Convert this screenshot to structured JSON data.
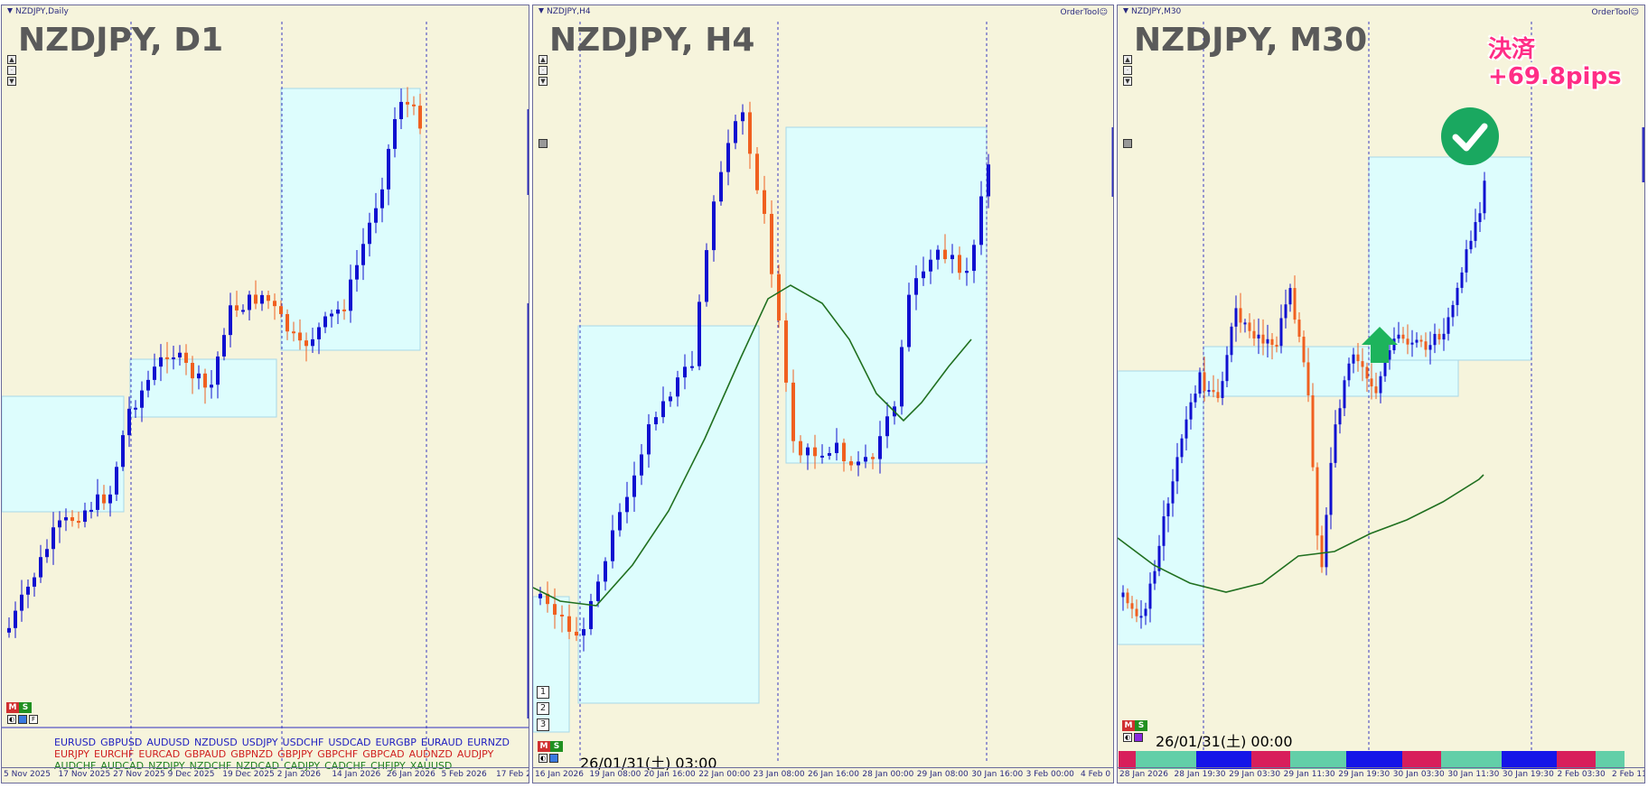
{
  "panels": [
    {
      "title": "NZDJPY,Daily",
      "big_label": "NZDJPY, D1",
      "ordertool": "",
      "xaxis": [
        "5 Nov 2025",
        "17 Nov 2025",
        "27 Nov 2025",
        "9 Dec 2025",
        "19 Dec 2025",
        "2 Jan 2026",
        "14 Jan 2026",
        "26 Jan 2026",
        "5 Feb 2026",
        "17 Feb 2"
      ],
      "ms_buttons": [
        "M",
        "S",
        "F"
      ]
    },
    {
      "title": "NZDJPY,H4",
      "big_label": "NZDJPY, H4",
      "ordertool": "OrderTool☺",
      "xaxis": [
        "16 Jan 2026",
        "19 Jan 08:00",
        "20 Jan 16:00",
        "22 Jan 00:00",
        "23 Jan 08:00",
        "26 Jan 16:00",
        "28 Jan 00:00",
        "29 Jan 08:00",
        "30 Jan 16:00",
        "3 Feb 00:00",
        "4 Feb 0"
      ],
      "buttons_123": [
        "1",
        "2",
        "3"
      ],
      "datetime": "26/01/31(土) 03:00"
    },
    {
      "title": "NZDJPY,M30",
      "big_label": "NZDJPY, M30",
      "ordertool": "OrderTool☺",
      "xaxis": [
        "28 Jan 2026",
        "28 Jan 19:30",
        "29 Jan 03:30",
        "29 Jan 11:30",
        "29 Jan 19:30",
        "30 Jan 03:30",
        "30 Jan 11:30",
        "30 Jan 19:30",
        "2 Feb 03:30",
        "2 Feb 11"
      ],
      "datetime": "26/01/31(土) 00:00",
      "result_line1": "決済",
      "result_line2": "+69.8pips"
    }
  ],
  "pair_rows": [
    {
      "color": "#2020c0",
      "items": [
        "EURUSD",
        "GBPUSD",
        "AUDUSD",
        "NZDUSD",
        "USDJPY",
        "USDCHF",
        "USDCAD",
        "EURGBP",
        "EURAUD",
        "EURNZD"
      ]
    },
    {
      "color": "#d02020",
      "items": [
        "EURJPY",
        "EURCHF",
        "EURCAD",
        "GBPAUD",
        "GBPNZD",
        "GBPJPY",
        "GBPCHF",
        "GBPCAD",
        "AUDNZD",
        "AUDJPY"
      ]
    },
    {
      "color": "#208020",
      "items": [
        "AUDCHF",
        "AUDCAD",
        "NZDJPY",
        "NZDCHF",
        "NZDCAD",
        "CADJPY",
        "CADCHF",
        "CHFJPY",
        "XAUUSD"
      ]
    }
  ],
  "colors": {
    "bull": "#1010d0",
    "bear": "#f06020",
    "zone": "#ddfdfd",
    "ma": "#207020",
    "check": "#1aa860",
    "arrow": "#1db45c",
    "result": "#ff2d86"
  },
  "icons": [
    "check-circle-icon",
    "up-arrow-icon"
  ]
}
